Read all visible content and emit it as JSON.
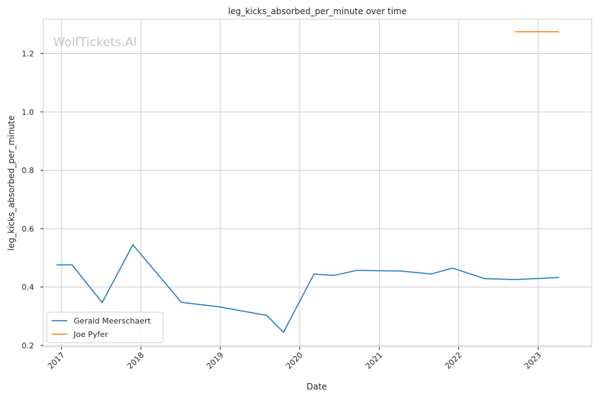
{
  "chart_data": {
    "type": "line",
    "title": "leg_kicks_absorbed_per_minute over time",
    "xlabel": "Date",
    "ylabel": "leg_kicks_absorbed_per_minute",
    "watermark": "WolfTickets.AI",
    "x_ticks": [
      "2017",
      "2018",
      "2019",
      "2020",
      "2021",
      "2022",
      "2023"
    ],
    "y_ticks": [
      "0.2",
      "0.4",
      "0.6",
      "0.8",
      "1.0",
      "1.2"
    ],
    "xlim": [
      "2016-10-09",
      "2023-09-04"
    ],
    "ylim": [
      0.195,
      1.318
    ],
    "grid": true,
    "legend_position": "lower-left",
    "series": [
      {
        "name": "Gerald Meerschaert",
        "color": "#1f77b4",
        "points": [
          [
            "2016-12-09",
            0.476
          ],
          [
            "2017-02-19",
            0.476
          ],
          [
            "2017-07-07",
            0.347
          ],
          [
            "2017-11-25",
            0.545
          ],
          [
            "2018-07-06",
            0.348
          ],
          [
            "2018-12-29",
            0.332
          ],
          [
            "2019-08-03",
            0.303
          ],
          [
            "2019-10-18",
            0.245
          ],
          [
            "2020-03-07",
            0.445
          ],
          [
            "2020-06-06",
            0.44
          ],
          [
            "2020-09-19",
            0.457
          ],
          [
            "2021-04-10",
            0.455
          ],
          [
            "2021-08-28",
            0.445
          ],
          [
            "2021-12-04",
            0.465
          ],
          [
            "2022-04-30",
            0.429
          ],
          [
            "2022-09-17",
            0.426
          ],
          [
            "2023-04-08",
            0.433
          ]
        ]
      },
      {
        "name": "Joe Pyfer",
        "color": "#ff7f0e",
        "points": [
          [
            "2022-09-17",
            1.275
          ],
          [
            "2023-04-08",
            1.275
          ]
        ]
      }
    ]
  }
}
